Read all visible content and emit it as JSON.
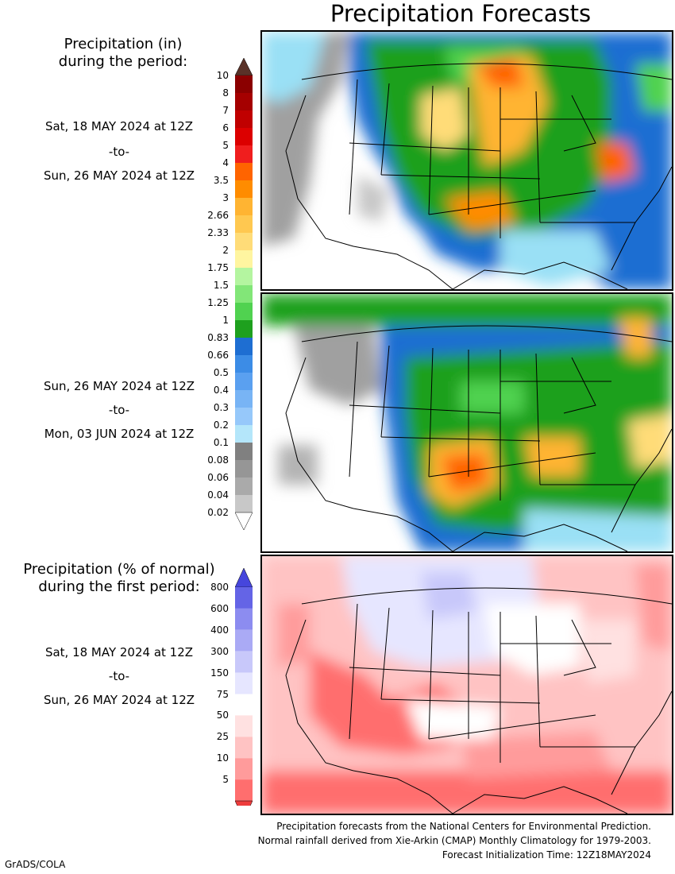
{
  "title": "Precipitation Forecasts",
  "amount_legend": {
    "title_lines": [
      "Precipitation (in)",
      "during the period:"
    ],
    "labels": [
      "10",
      "8",
      "7",
      "6",
      "5",
      "4",
      "3.5",
      "3",
      "2.66",
      "2.33",
      "2",
      "1.75",
      "1.5",
      "1.25",
      "1",
      "0.83",
      "0.66",
      "0.5",
      "0.4",
      "0.3",
      "0.2",
      "0.1",
      "0.08",
      "0.06",
      "0.04",
      "0.02"
    ],
    "colors": [
      "#8b0000",
      "#a50000",
      "#c00000",
      "#dc0000",
      "#f01e1e",
      "#ff6400",
      "#ff8c00",
      "#ffb432",
      "#ffc850",
      "#ffdc78",
      "#fff5a0",
      "#b4f5a0",
      "#82e678",
      "#50d250",
      "#1ea01e",
      "#1e6ed2",
      "#3c8ce6",
      "#5aa0f0",
      "#78b4f5",
      "#96c8fa",
      "#b4e6fa",
      "#808080",
      "#969696",
      "#aaaaaa",
      "#c8c8c8"
    ],
    "top_cap_color": "#5a3228",
    "bottom_cap_color": "#ffffff"
  },
  "period1": {
    "from": "Sat, 18 MAY 2024 at 12Z",
    "sep": "-to-",
    "to": "Sun, 26 MAY 2024 at 12Z"
  },
  "period2": {
    "from": "Sun, 26 MAY 2024 at 12Z",
    "sep": "-to-",
    "to": "Mon, 03 JUN 2024 at 12Z"
  },
  "percent_legend": {
    "title_lines": [
      "Precipitation (% of normal)",
      "during the first period:"
    ],
    "labels": [
      "800",
      "600",
      "400",
      "300",
      "150",
      "75",
      "50",
      "25",
      "10",
      "5"
    ],
    "colors": [
      "#6464e6",
      "#8c8cf0",
      "#aaaaf5",
      "#c8c8fa",
      "#e6e6ff",
      "#ffffff",
      "#ffe1e1",
      "#ffc3c3",
      "#ff9b9b",
      "#ff6e6e"
    ],
    "top_cap_color": "#4646dc",
    "bottom_cap_color": "#ee3c3c"
  },
  "period3": {
    "from": "Sat, 18 MAY 2024 at 12Z",
    "sep": "-to-",
    "to": "Sun, 26 MAY 2024 at 12Z"
  },
  "footer": {
    "line1": "Precipitation forecasts from the National Centers for Environmental Prediction.",
    "line2": "Normal rainfall derived from Xie-Arkin (CMAP) Monthly Climatology for 1979-2003.",
    "line3": "Forecast Initialization Time: 12Z18MAY2024"
  },
  "credit": "GrADS/COLA"
}
